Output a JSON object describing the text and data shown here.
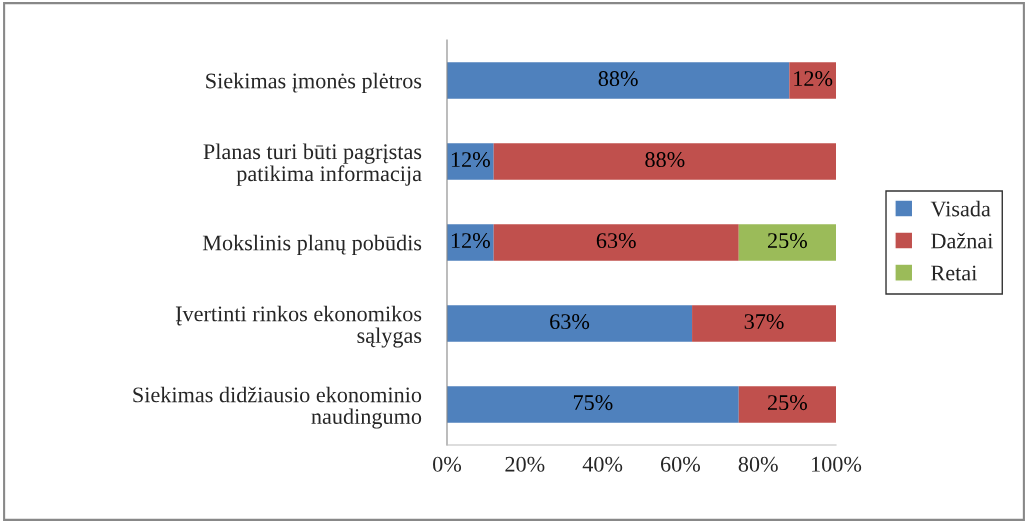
{
  "chart_data": {
    "type": "bar",
    "orientation": "horizontal",
    "stacked": true,
    "categories": [
      "Siekimas įmonės plėtros",
      "Planas turi būti pagrįstas\npatikima informacija",
      "Mokslinis planų pobūdis",
      "Įvertinti rinkos ekonomikos\nsąlygas",
      "Siekimas didžiausio ekonominio\nnaudingumo"
    ],
    "series": [
      {
        "name": "Visada",
        "color": "#4f81bd",
        "values": [
          88,
          12,
          12,
          63,
          75
        ],
        "value_labels": [
          "88%",
          "12%",
          "12%",
          "63%",
          "75%"
        ]
      },
      {
        "name": "Dažnai",
        "color": "#c0504d",
        "values": [
          12,
          88,
          63,
          37,
          25
        ],
        "value_labels": [
          "12%",
          "88%",
          "63%",
          "37%",
          "25%"
        ]
      },
      {
        "name": "Retai",
        "color": "#9bbb59",
        "values": [
          null,
          null,
          25,
          null,
          null
        ],
        "value_labels": [
          null,
          null,
          "25%",
          null,
          null
        ]
      }
    ],
    "xlim": [
      0,
      100
    ],
    "xticks": [
      {
        "value": 0,
        "label": "0%"
      },
      {
        "value": 20,
        "label": "20%"
      },
      {
        "value": 40,
        "label": "40%"
      },
      {
        "value": 60,
        "label": "60%"
      },
      {
        "value": 80,
        "label": "80%"
      },
      {
        "value": 100,
        "label": "100%"
      }
    ],
    "grid": false,
    "legend": "right"
  }
}
